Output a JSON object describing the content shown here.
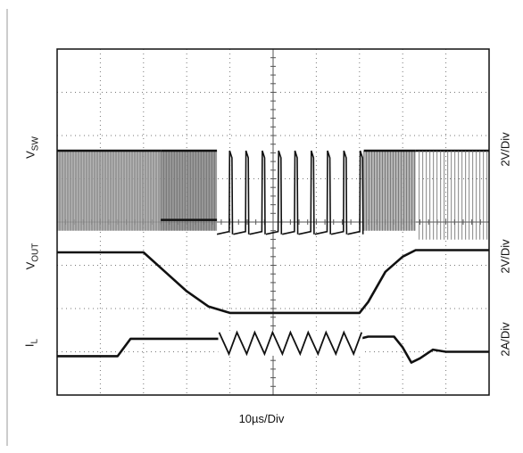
{
  "chart_data": {
    "type": "line",
    "title": "",
    "xlabel": "10µs/Div",
    "x_divisions": 10,
    "y_divisions": 8,
    "grid": true,
    "time_per_div_us": 10,
    "channels": [
      {
        "name_main": "V",
        "name_sub": "SW",
        "scale": "2V/Div",
        "style": "switching",
        "high_level_div": 5.65,
        "low_level_div": 3.8,
        "segments": [
          {
            "from": 0,
            "to": 2.4,
            "mode": "dense"
          },
          {
            "from": 2.4,
            "to": 3.7,
            "mode": "dense_gray"
          },
          {
            "from": 3.7,
            "to": 7.1,
            "mode": "pulses",
            "count": 9
          },
          {
            "from": 7.1,
            "to": 8.3,
            "mode": "dense"
          },
          {
            "from": 8.3,
            "to": 10,
            "mode": "thin_pulses"
          }
        ]
      },
      {
        "name_main": "V",
        "name_sub": "OUT",
        "scale": "2V/Div",
        "style": "trace",
        "points": [
          [
            0,
            3.3
          ],
          [
            2.0,
            3.3
          ],
          [
            2.5,
            2.85
          ],
          [
            3.0,
            2.4
          ],
          [
            3.5,
            2.05
          ],
          [
            4.0,
            1.9
          ],
          [
            7.0,
            1.9
          ],
          [
            7.2,
            2.15
          ],
          [
            7.6,
            2.85
          ],
          [
            8.0,
            3.2
          ],
          [
            8.3,
            3.35
          ],
          [
            10,
            3.35
          ]
        ]
      },
      {
        "name_main": "I",
        "name_sub": "L",
        "scale": "2A/Div",
        "style": "current",
        "points": [
          [
            0,
            0.9
          ],
          [
            1.4,
            0.9
          ],
          [
            1.7,
            1.3
          ],
          [
            2.5,
            1.3
          ],
          [
            3.6,
            1.3
          ],
          [
            3.8,
            1.3
          ],
          [
            7.0,
            1.3
          ],
          [
            7.2,
            1.35
          ],
          [
            7.8,
            1.35
          ],
          [
            8.0,
            1.1
          ],
          [
            8.2,
            0.75
          ],
          [
            8.4,
            0.85
          ],
          [
            8.7,
            1.05
          ],
          [
            9.0,
            1.0
          ],
          [
            10,
            1.0
          ]
        ]
      }
    ]
  }
}
